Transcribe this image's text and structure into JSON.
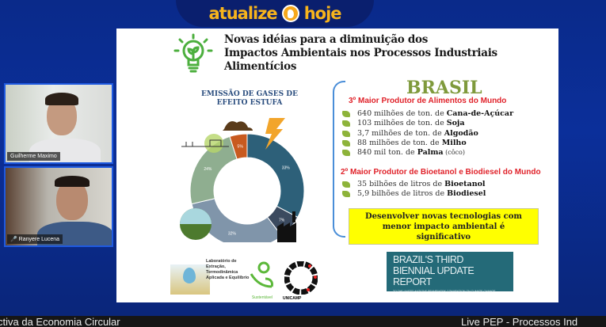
{
  "header": {
    "logo_left": "atualize",
    "logo_right": "hoje"
  },
  "participants": [
    {
      "name": "Guilherme Maximo"
    },
    {
      "name": "Ranyere Lucena"
    }
  ],
  "slide": {
    "title_lines": [
      "Novas idéias para a diminuição dos",
      "Impactos Ambientais nos Processos Industriais",
      "Alimentícios"
    ],
    "chart_title_lines": [
      "EMISSÃO DE GASES DE",
      "EFEITO ESTUFA"
    ],
    "brasil": "BRASIL",
    "sub1": "3º Maior Produtor de Alimentos do Mundo",
    "foods": [
      {
        "text": "640 milhões de ton. de ",
        "bold": "Cana-de-Açúcar",
        "extra": ""
      },
      {
        "text": "103 milhões de ton. de ",
        "bold": "Soja",
        "extra": ""
      },
      {
        "text": "3,7 milhões de ton. de ",
        "bold": "Algodão",
        "extra": ""
      },
      {
        "text": "88 milhões de ton. de ",
        "bold": "Milho",
        "extra": ""
      },
      {
        "text": "840 mil ton. de ",
        "bold": "Palma",
        "extra": " (côco)"
      }
    ],
    "sub2": "2º Maior Produtor de Bioetanol e Biodiesel do Mundo",
    "fuels": [
      {
        "text": "35 bilhões de litros de ",
        "bold": "Bioetanol",
        "extra": ""
      },
      {
        "text": "5,9 bilhões de litros de ",
        "bold": "Biodiesel",
        "extra": ""
      }
    ],
    "highlight_lines": [
      "Desenvolver novas tecnologias com",
      "menor impacto ambiental é",
      "significativo"
    ],
    "report": {
      "line1": "BRAZIL'S THIRD",
      "line2": "BIENNIAL UPDATE REPORT",
      "line3": "TO THE UNITED NATIONS FRAMEWORK CONVENTION ON CLIMATE CHANGE"
    },
    "lab_lines": [
      "Laboratório de",
      "Extração,",
      "Termodinâmica",
      "Aplicada e Equilíbrio"
    ],
    "sust_label": "Sustentável",
    "unicamp": "UNICAMP"
  },
  "chart_data": {
    "type": "pie",
    "title": "EMISSÃO DE GASES DE EFEITO ESTUFA",
    "donut": true,
    "slices": [
      {
        "label": "33%",
        "value": 33,
        "color": "#2d6079"
      },
      {
        "label": "7%",
        "value": 7,
        "color": "#3b4a5f"
      },
      {
        "label": "32%",
        "value": 32,
        "color": "#8095aa"
      },
      {
        "label": "24%",
        "value": 24,
        "color": "#8fae90"
      },
      {
        "label": "5%",
        "value": 5,
        "color": "#c85a1f"
      }
    ]
  },
  "ticker": {
    "left": "ctiva da Economia Circular",
    "right": "Live PEP - Processos Ind"
  }
}
